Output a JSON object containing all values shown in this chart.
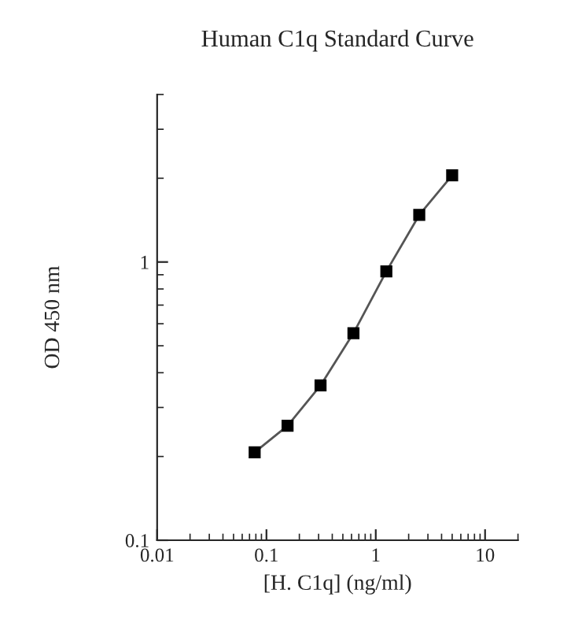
{
  "chart_data": {
    "type": "line",
    "title": "Human C1q Standard Curve",
    "xlabel": "[H. C1q] (ng/ml)",
    "ylabel": "OD 450 nm",
    "x": [
      0.078,
      0.156,
      0.3125,
      0.625,
      1.25,
      2.5,
      5
    ],
    "series": [
      {
        "color": "#000000",
        "values": [
          0.207,
          0.258,
          0.36,
          0.555,
          0.925,
          1.476,
          2.05
        ]
      }
    ],
    "log": "xy",
    "xlim": [
      0.01,
      20
    ],
    "ylim": [
      0.1,
      4
    ],
    "xticks": [
      0.01,
      0.1,
      1,
      10
    ],
    "yticks": [
      0.1,
      1
    ],
    "marker": "square",
    "line_style": "solid",
    "grid": false,
    "legend": false
  }
}
